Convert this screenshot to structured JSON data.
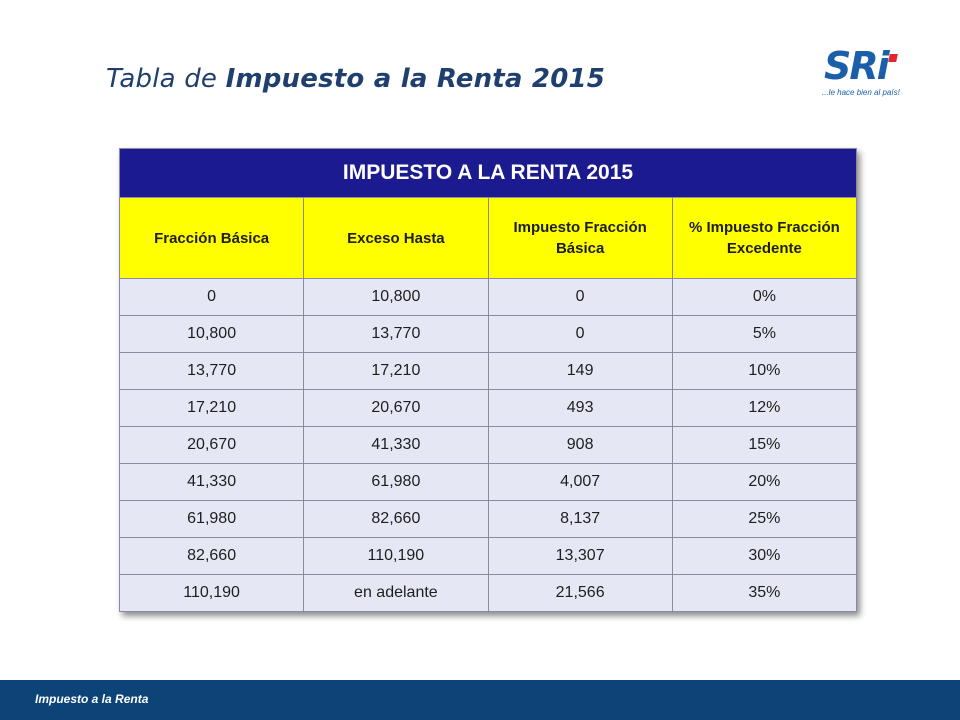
{
  "title": {
    "prefix": "Tabla de ",
    "emphasis": "Impuesto a la Renta 2015"
  },
  "logo": {
    "mark": "SRi",
    "tagline": "...le hace bien al país!",
    "icon": "sri-logo-icon",
    "colors": {
      "primary": "#1b5faa",
      "accent": "#e3262e"
    }
  },
  "table": {
    "caption": "IMPUESTO A LA RENTA 2015",
    "headers": [
      "Fracción Básica",
      "Exceso Hasta",
      "Impuesto Fracción Básica",
      "% Impuesto Fracción Excedente"
    ],
    "rows": [
      [
        "0",
        "10,800",
        "0",
        "0%"
      ],
      [
        "10,800",
        "13,770",
        "0",
        "5%"
      ],
      [
        "13,770",
        "17,210",
        "149",
        "10%"
      ],
      [
        "17,210",
        "20,670",
        "493",
        "12%"
      ],
      [
        "20,670",
        "41,330",
        "908",
        "15%"
      ],
      [
        "41,330",
        "61,980",
        "4,007",
        "20%"
      ],
      [
        "61,980",
        "82,660",
        "8,137",
        "25%"
      ],
      [
        "82,660",
        "110,190",
        "13,307",
        "30%"
      ],
      [
        "110,190",
        "en adelante",
        "21,566",
        "35%"
      ]
    ],
    "colors": {
      "caption_bg": "#1b1a8e",
      "header_bg": "#ffff00",
      "body_bg": "#e6e7f4"
    }
  },
  "footer": {
    "text": "Impuesto a la Renta",
    "color": "#0d4478"
  }
}
